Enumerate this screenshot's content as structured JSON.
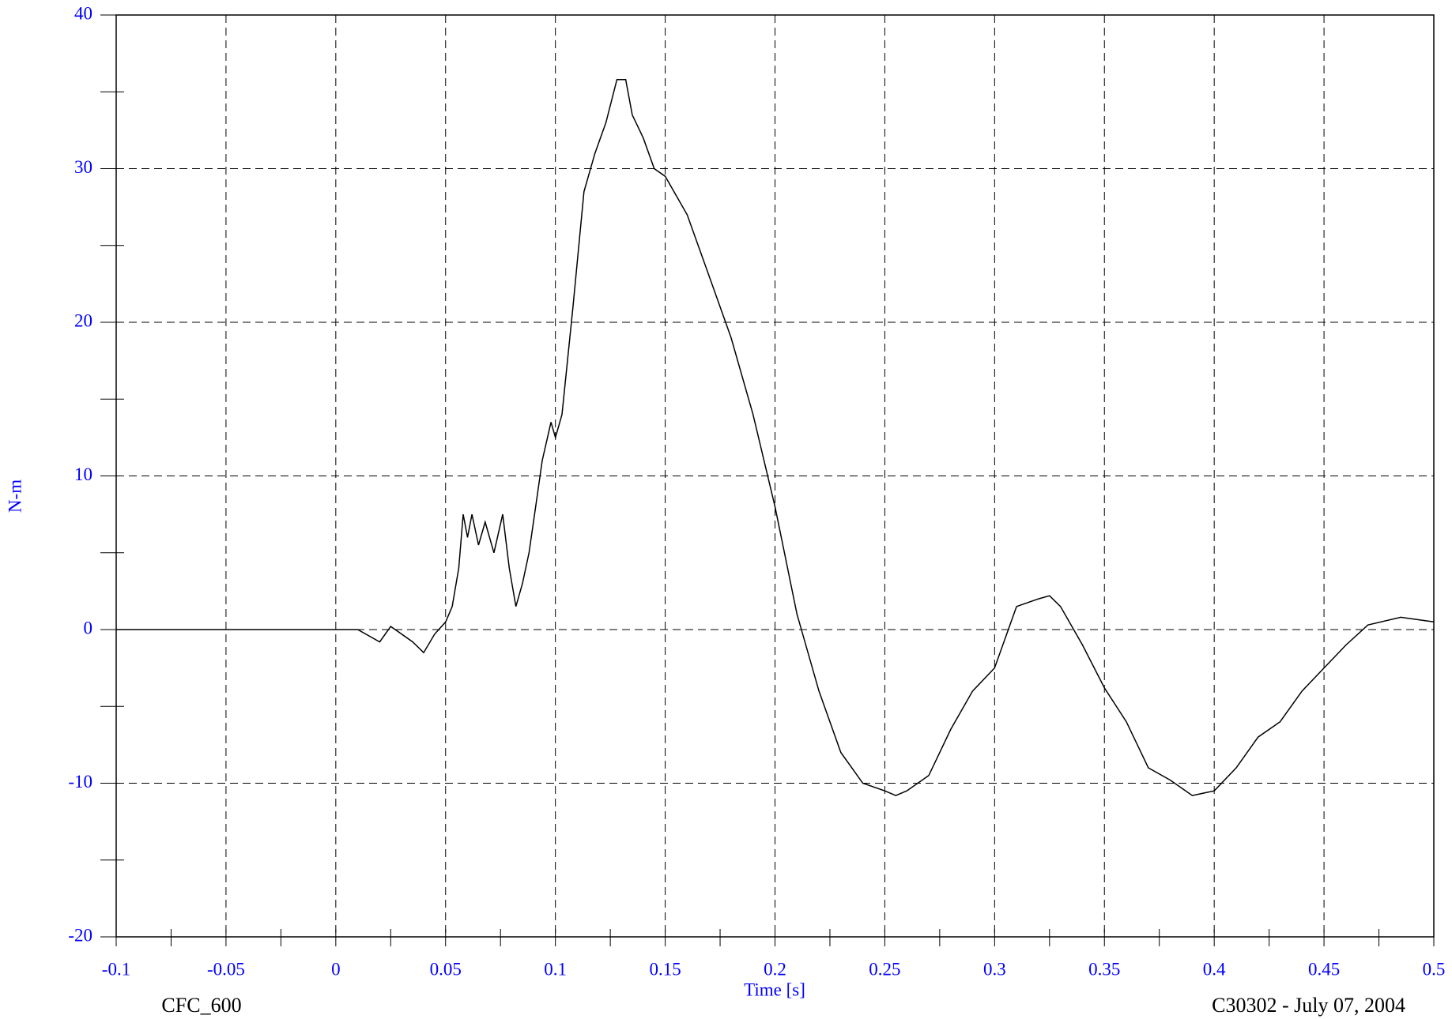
{
  "chart_data": {
    "type": "line",
    "y_label": "N-m",
    "x_label": "Time [s]",
    "footer_left": "CFC_600",
    "footer_right": "C30302 - July 07, 2004",
    "xlim": [
      -0.1,
      0.5
    ],
    "ylim": [
      -20,
      40
    ],
    "xticks": [
      -0.1,
      -0.05,
      0,
      0.05,
      0.1,
      0.15,
      0.2,
      0.25,
      0.3,
      0.35,
      0.4,
      0.45,
      0.5
    ],
    "yticks": [
      -20,
      -10,
      0,
      10,
      20,
      30,
      40
    ],
    "xminorticks": [
      -0.075,
      -0.025,
      0.025,
      0.075,
      0.125,
      0.175,
      0.225,
      0.275,
      0.325,
      0.375,
      0.425,
      0.475
    ],
    "yminorticks": [
      -15,
      -5,
      5,
      15,
      25,
      35
    ],
    "grid": true,
    "series": [
      {
        "color": "#000000",
        "x": [
          -0.1,
          -0.05,
          0,
          0.01,
          0.02,
          0.025,
          0.03,
          0.035,
          0.04,
          0.045,
          0.05,
          0.053,
          0.056,
          0.058,
          0.06,
          0.062,
          0.065,
          0.068,
          0.072,
          0.076,
          0.079,
          0.082,
          0.085,
          0.088,
          0.091,
          0.094,
          0.098,
          0.1,
          0.103,
          0.108,
          0.113,
          0.118,
          0.123,
          0.128,
          0.132,
          0.135,
          0.14,
          0.145,
          0.15,
          0.16,
          0.17,
          0.18,
          0.19,
          0.2,
          0.21,
          0.22,
          0.23,
          0.24,
          0.25,
          0.255,
          0.26,
          0.27,
          0.28,
          0.29,
          0.3,
          0.31,
          0.32,
          0.325,
          0.33,
          0.34,
          0.35,
          0.36,
          0.37,
          0.38,
          0.39,
          0.4,
          0.41,
          0.42,
          0.43,
          0.44,
          0.45,
          0.46,
          0.47,
          0.485,
          0.5
        ],
        "values": [
          0,
          0,
          0,
          0,
          -0.8,
          0.2,
          -0.3,
          -0.8,
          -1.5,
          -0.3,
          0.5,
          1.5,
          4,
          7.5,
          6,
          7.5,
          5.5,
          7,
          5,
          7.5,
          4,
          1.5,
          3,
          5,
          8,
          11,
          13.5,
          12.5,
          14,
          21,
          28.5,
          31,
          33,
          35.8,
          35.8,
          33.5,
          32,
          30,
          29.5,
          27,
          23,
          19,
          14,
          8,
          1,
          -4,
          -8,
          -10,
          -10.5,
          -10.8,
          -10.5,
          -9.5,
          -6.5,
          -4,
          -2.5,
          1.5,
          2,
          2.2,
          1.5,
          -1,
          -3.8,
          -6,
          -9,
          -9.8,
          -10.8,
          -10.5,
          -9,
          -7,
          -6,
          -4,
          -2.5,
          -1,
          0.3,
          0.8,
          0.5
        ]
      }
    ]
  }
}
